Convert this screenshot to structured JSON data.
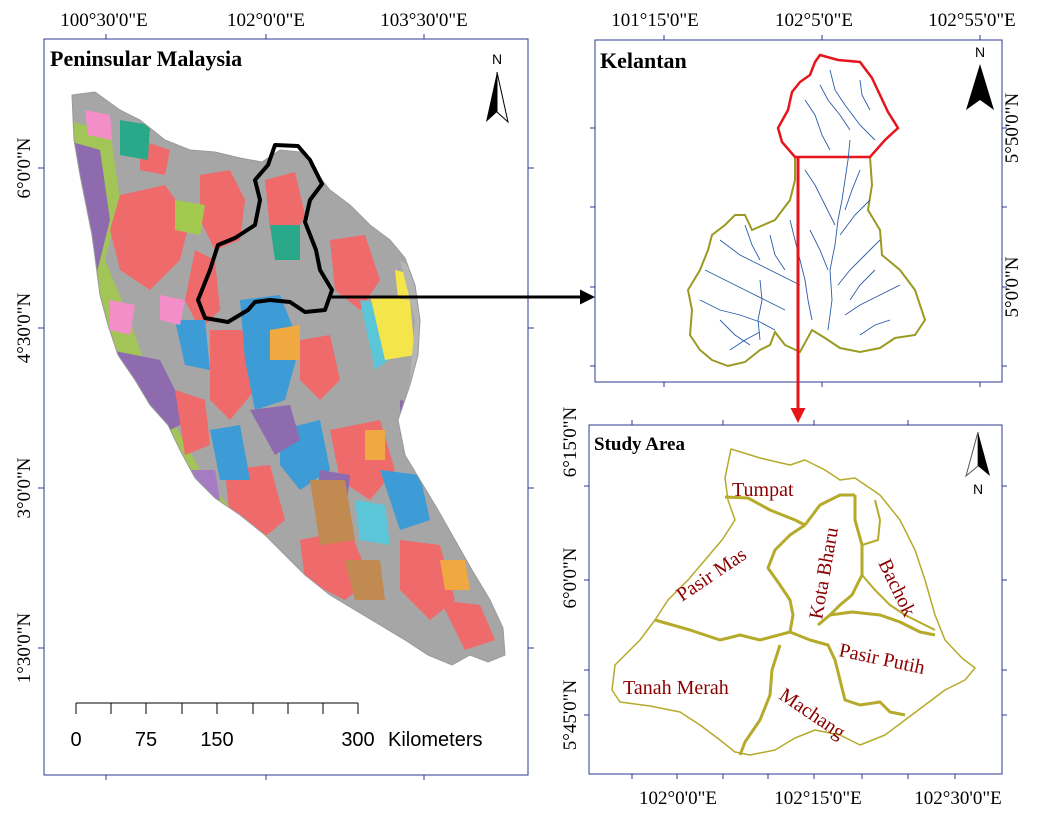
{
  "panels": {
    "peninsular": {
      "title": "Peninsular Malaysia",
      "top_ticks": [
        "100°30'0\"E",
        "102°0'0\"E",
        "103°30'0\"E"
      ],
      "left_ticks": [
        "6°0'0\"N",
        "4°30'0\"N",
        "3°0'0\"N",
        "1°30'0\"N"
      ],
      "scale": {
        "labels": [
          "0",
          "75",
          "150",
          "300"
        ],
        "unit": "Kilometers"
      },
      "north": "N"
    },
    "kelantan": {
      "title": "Kelantan",
      "top_ticks": [
        "101°15'0\"E",
        "102°5'0\"E",
        "102°55'0\"E"
      ],
      "right_ticks": [
        "5°50'0\"N",
        "5°0'0\"N"
      ],
      "north": "N"
    },
    "study_area": {
      "title": "Study Area",
      "bottom_ticks": [
        "102°0'0\"E",
        "102°15'0\"E",
        "102°30'0\"E"
      ],
      "left_ticks": [
        "6°15'0\"N",
        "6°0'0\"N",
        "5°45'0\"N"
      ],
      "north": "N",
      "districts": {
        "tumpat": "Tumpat",
        "pasir_mas": "Pasir Mas",
        "kota_bharu": "Kota Bharu",
        "bachok": "Bachok",
        "pasir_putih": "Pasir Putih",
        "tanah_merah": "Tanah Merah",
        "machang": "Machang"
      }
    }
  },
  "colors": {
    "frame": "#2b3a8f",
    "study_boundary": "#b5aa2a",
    "kelantan_outline": "#9a9a22",
    "coastal_outline": "#e8141b",
    "rivers": "#2a5caa",
    "connector_black": "#000000",
    "connector_red": "#e8141b",
    "district_labels": "#8b0000"
  }
}
